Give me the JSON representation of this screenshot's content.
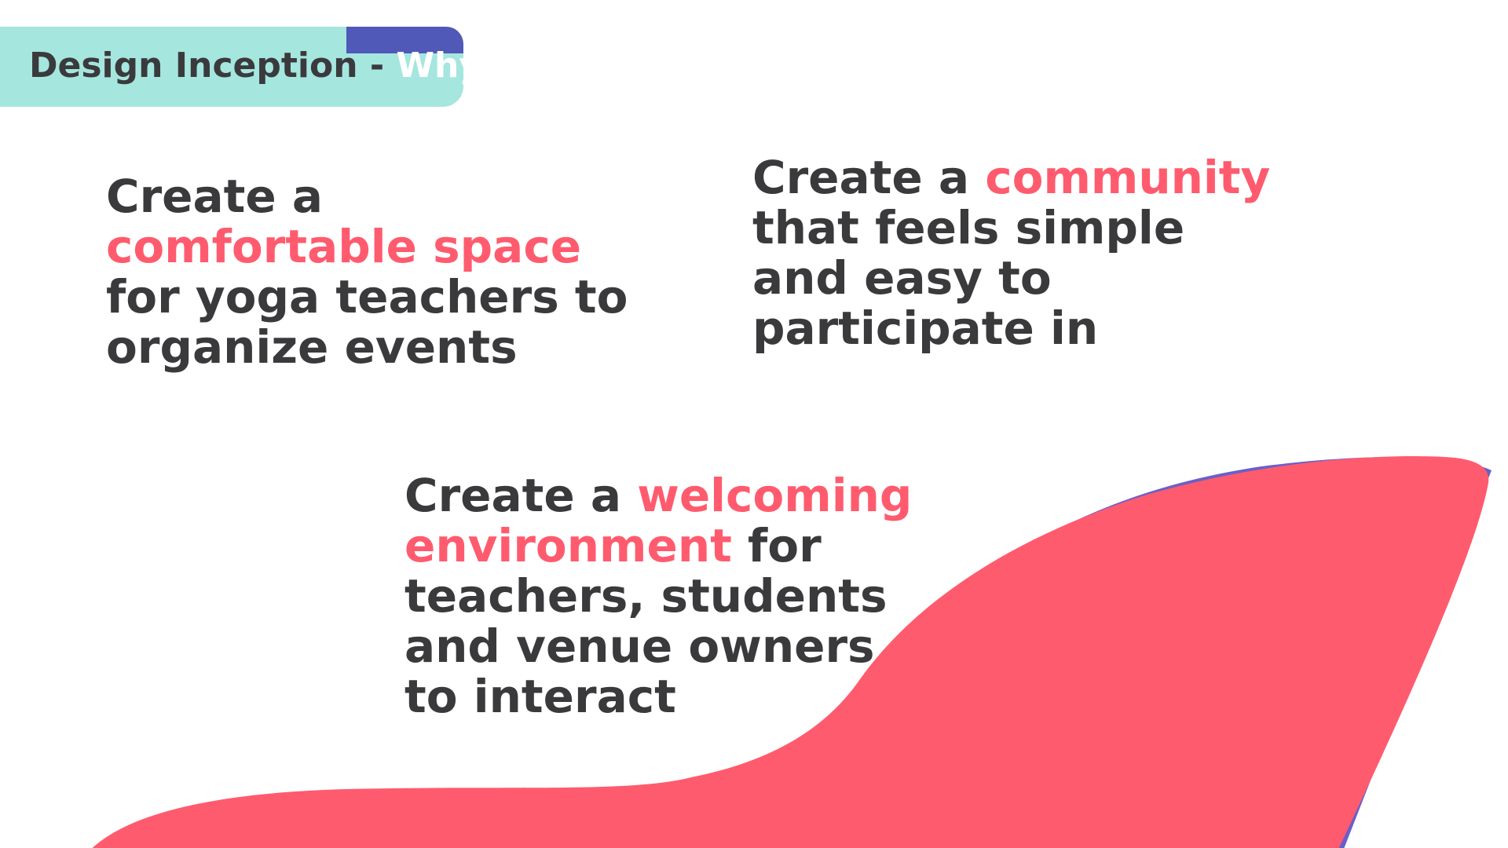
{
  "header": {
    "title_prefix": "Design Inception - ",
    "title_accent": "Why"
  },
  "statements": [
    {
      "line1": "Create a",
      "highlight": "comfortable space",
      "line3": "for yoga teachers to",
      "line4": "organize events"
    },
    {
      "lead": "Create a ",
      "highlight": "community",
      "line2": "that feels simple",
      "line3": "and easy to",
      "line4": "participate in"
    },
    {
      "lead": "Create a ",
      "highlight1": "welcoming",
      "highlight2": "environment",
      "tail2": " for",
      "line3": "teachers, students",
      "line4": "and venue owners",
      "line5": "to interact"
    }
  ],
  "colors": {
    "text": "#3a3a3c",
    "accent_pink": "#ff5b6e",
    "header_mint": "#a5e6df",
    "header_purple": "#5058b8",
    "blob_pink": "#ff5b6e"
  }
}
